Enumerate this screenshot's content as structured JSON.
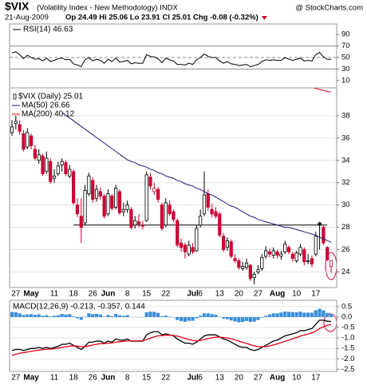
{
  "header": {
    "symbol": "$VIX",
    "description": "(Volatility Index - New Methodology) INDX",
    "source": "@ StockCharts.com",
    "date": "21-Aug-2009",
    "quote": "Op 24.49 Hi 25.06 Lo 23.91 Cl 25.01 Chg -0.08 (-0.32%)"
  },
  "chart_data": [
    {
      "type": "line",
      "ylim": [
        0,
        100
      ],
      "yticks": [
        10,
        30,
        50,
        70,
        90
      ],
      "reference_lines": [
        30,
        50,
        70
      ],
      "series": [
        {
          "name": "RSI(14) 46.63",
          "color": "#000000",
          "values": [
            58,
            60,
            55,
            48,
            54,
            50,
            47,
            48,
            44,
            49,
            43,
            45,
            48,
            49,
            46,
            47,
            39,
            37,
            34,
            46,
            50,
            44,
            47,
            45,
            40,
            47,
            43,
            49,
            42,
            43,
            45,
            39,
            41,
            40,
            40,
            55,
            52,
            51,
            48,
            41,
            49,
            46,
            44,
            38,
            38,
            37,
            40,
            38,
            46,
            50,
            56,
            52,
            50,
            50,
            44,
            40,
            43,
            39,
            38,
            36,
            37,
            38,
            34,
            36,
            38,
            43,
            46,
            45,
            46,
            45,
            45,
            50,
            47,
            45,
            47,
            49,
            44,
            45,
            44,
            55,
            59,
            51,
            46.8,
            46.63
          ]
        }
      ]
    },
    {
      "type": "candlestick",
      "ylim": [
        22.6,
        40.5
      ],
      "yticks": [
        24,
        26,
        28,
        30,
        32,
        34,
        36,
        38
      ],
      "grid": true,
      "reference_lines": [
        28.2
      ],
      "categories": [
        null,
        "27",
        null,
        null,
        null,
        "May",
        null,
        null,
        null,
        null,
        null,
        "11",
        null,
        null,
        null,
        null,
        "18",
        null,
        null,
        null,
        null,
        "26",
        null,
        null,
        null,
        "Jun",
        null,
        null,
        null,
        null,
        "8",
        null,
        null,
        null,
        null,
        "15",
        null,
        null,
        null,
        null,
        "22",
        null,
        null,
        null,
        null,
        null,
        null,
        "Jul",
        null,
        "6",
        null,
        null,
        null,
        null,
        "13",
        null,
        null,
        null,
        null,
        "20",
        null,
        null,
        null,
        null,
        "27",
        null,
        null,
        null,
        null,
        "Aug",
        null,
        null,
        null,
        null,
        "10",
        null,
        null,
        null,
        null,
        "17",
        null,
        null,
        null,
        null
      ],
      "series": [
        {
          "name": "$VIX (Daily) 25.01",
          "up_color": "#000000",
          "down_color": "#cc0033",
          "open": [
            36.5,
            37.3,
            37.2,
            36.4,
            35.2,
            36.2,
            35.0,
            34.0,
            34.4,
            33.0,
            33.9,
            32.4,
            32.8,
            33.6,
            33.8,
            32.6,
            33.0,
            30.0,
            29.0,
            28.4,
            31.0,
            32.2,
            30.6,
            31.2,
            30.8,
            29.2,
            30.8,
            29.8,
            31.2,
            29.4,
            29.6,
            29.6,
            28.2,
            28.5,
            28.2,
            28.6,
            32.5,
            31.2,
            31.4,
            30.0,
            28.2,
            30.0,
            29.4,
            28.6,
            26.6,
            26.4,
            25.6,
            26.2,
            25.9,
            28.2,
            29.2,
            31.0,
            29.6,
            29.4,
            29.2,
            27.2,
            26.2,
            26.7,
            25.2,
            25.0,
            24.3,
            24.4,
            24.6,
            23.5,
            24.0,
            24.3,
            25.4,
            25.8,
            25.5,
            25.8,
            25.4,
            25.8,
            26.2,
            25.6,
            25.0,
            25.6,
            26.0,
            25.0,
            25.2,
            25.6,
            28.4,
            28.0,
            26.2,
            24.49
          ],
          "high": [
            37.6,
            38.0,
            37.6,
            36.7,
            36.9,
            36.4,
            35.4,
            35.0,
            34.6,
            34.8,
            34.2,
            33.2,
            33.9,
            34.2,
            34.0,
            33.6,
            33.2,
            30.6,
            30.6,
            31.8,
            32.9,
            32.5,
            31.8,
            31.6,
            31.0,
            31.4,
            31.0,
            31.8,
            31.4,
            30.2,
            30.4,
            29.8,
            29.0,
            29.2,
            28.6,
            33.0,
            32.9,
            32.0,
            31.6,
            30.2,
            30.6,
            30.4,
            29.6,
            28.8,
            27.0,
            26.6,
            26.8,
            26.6,
            28.2,
            29.6,
            33.0,
            31.4,
            30.1,
            29.8,
            29.4,
            27.5,
            27.1,
            26.9,
            25.6,
            25.2,
            24.9,
            25.2,
            24.7,
            24.0,
            24.6,
            25.6,
            26.3,
            26.1,
            26.2,
            26.0,
            25.9,
            26.8,
            26.4,
            25.8,
            25.9,
            26.5,
            26.2,
            25.6,
            25.5,
            27.6,
            28.5,
            28.2,
            26.3,
            25.06
          ],
          "low": [
            36.2,
            36.8,
            36.3,
            34.8,
            35.0,
            35.0,
            34.0,
            33.7,
            32.6,
            32.8,
            31.9,
            32.0,
            32.6,
            33.0,
            32.6,
            32.4,
            30.0,
            28.9,
            26.6,
            28.2,
            30.8,
            30.2,
            30.3,
            30.5,
            28.8,
            29.0,
            29.5,
            29.6,
            29.1,
            29.0,
            29.3,
            27.8,
            27.9,
            28.0,
            27.8,
            28.5,
            31.4,
            30.9,
            30.2,
            27.7,
            28.0,
            29.0,
            28.5,
            26.2,
            25.8,
            25.2,
            25.4,
            25.6,
            25.8,
            28.0,
            29.0,
            29.5,
            28.9,
            28.8,
            27.1,
            25.8,
            25.9,
            25.2,
            24.8,
            24.2,
            24.1,
            24.2,
            23.2,
            22.9,
            23.8,
            24.1,
            25.2,
            25.3,
            25.2,
            25.2,
            25.1,
            25.6,
            25.6,
            24.9,
            24.8,
            25.4,
            24.6,
            24.7,
            24.4,
            25.4,
            26.0,
            26.4,
            25.0,
            23.91
          ],
          "close": [
            37.0,
            37.5,
            36.6,
            35.0,
            36.5,
            35.3,
            34.2,
            34.5,
            32.8,
            34.2,
            32.1,
            32.6,
            33.5,
            33.9,
            32.8,
            33.2,
            30.2,
            29.2,
            28.0,
            31.3,
            32.6,
            30.5,
            31.4,
            30.8,
            29.0,
            31.0,
            29.7,
            31.5,
            29.3,
            29.6,
            30.0,
            28.0,
            28.6,
            28.3,
            28.1,
            32.7,
            31.7,
            31.5,
            30.5,
            27.9,
            30.2,
            29.2,
            28.7,
            26.4,
            26.2,
            25.8,
            26.4,
            25.8,
            27.9,
            29.0,
            30.9,
            29.8,
            29.2,
            29.0,
            27.3,
            26.0,
            26.8,
            25.4,
            25.0,
            24.4,
            24.5,
            24.8,
            23.4,
            23.8,
            24.2,
            25.3,
            25.9,
            25.6,
            25.9,
            25.5,
            25.6,
            26.5,
            25.8,
            25.2,
            25.7,
            26.2,
            24.9,
            25.0,
            24.7,
            27.2,
            28.2,
            26.6,
            25.09,
            25.01
          ]
        },
        {
          "name": "MA(50) 26.66",
          "color": "#1c1c7c",
          "values": [
            null,
            null,
            null,
            null,
            null,
            null,
            null,
            null,
            null,
            null,
            null,
            null,
            null,
            38.3,
            38.05,
            37.8,
            37.55,
            37.3,
            37.05,
            36.8,
            36.55,
            36.3,
            36.05,
            35.8,
            35.55,
            35.3,
            35.05,
            34.8,
            34.55,
            34.3,
            34.05,
            33.9,
            33.8,
            33.6,
            33.5,
            33.4,
            33.2,
            33.1,
            32.9,
            32.8,
            32.6,
            32.5,
            32.4,
            32.2,
            32.1,
            31.9,
            31.8,
            31.7,
            31.5,
            31.4,
            31.2,
            31.0,
            30.9,
            30.7,
            30.5,
            30.3,
            30.1,
            29.9,
            29.8,
            29.6,
            29.4,
            29.2,
            29.0,
            28.9,
            28.7,
            28.6,
            28.5,
            28.4,
            28.3,
            28.2,
            28.1,
            28.0,
            28.0,
            27.9,
            27.8,
            27.7,
            27.6,
            27.5,
            27.4,
            27.3,
            27.1,
            27.0,
            26.8,
            26.66
          ]
        },
        {
          "name": "MA(200) 40.12",
          "color": "#e0001b",
          "values": [
            null,
            null,
            null,
            null,
            null,
            null,
            null,
            null,
            null,
            null,
            null,
            null,
            null,
            null,
            null,
            null,
            null,
            null,
            null,
            null,
            null,
            null,
            null,
            null,
            null,
            null,
            null,
            null,
            null,
            null,
            null,
            null,
            null,
            null,
            null,
            null,
            null,
            null,
            null,
            null,
            null,
            null,
            null,
            null,
            null,
            null,
            null,
            null,
            null,
            null,
            null,
            null,
            null,
            null,
            null,
            null,
            null,
            null,
            null,
            null,
            null,
            null,
            null,
            null,
            null,
            null,
            null,
            null,
            null,
            null,
            null,
            null,
            null,
            null,
            null,
            null,
            null,
            null,
            40.55,
            40.45,
            40.35,
            40.27,
            40.19,
            40.12
          ]
        }
      ]
    },
    {
      "type": "macd",
      "title": "MACD(12,26,9)",
      "ylim": [
        -2.6,
        0.8
      ],
      "grid": true,
      "yticks": [
        0.5,
        {
          "value": 0,
          "label": "0.0"
        },
        -0.5,
        {
          "value": -1,
          "label": "-1.0"
        },
        -1.5,
        {
          "value": -2,
          "label": "-2.0"
        },
        -2.5
      ],
      "categories": [
        null,
        "27",
        null,
        null,
        null,
        "May",
        null,
        null,
        null,
        null,
        null,
        "11",
        null,
        null,
        null,
        null,
        "18",
        null,
        null,
        null,
        null,
        "26",
        null,
        null,
        null,
        "Jun",
        null,
        null,
        null,
        null,
        "8",
        null,
        null,
        null,
        null,
        "15",
        null,
        null,
        null,
        null,
        "22",
        null,
        null,
        null,
        null,
        null,
        null,
        "Jul",
        null,
        "6",
        null,
        null,
        null,
        null,
        "13",
        null,
        null,
        null,
        null,
        "20",
        null,
        null,
        null,
        null,
        "27",
        null,
        null,
        null,
        null,
        "Aug",
        null,
        null,
        null,
        null,
        "10",
        null,
        null,
        null,
        null,
        "17",
        null,
        null,
        null,
        null
      ],
      "series": [
        {
          "name": "-0.213,",
          "color": "#000000",
          "values": [
            -1.6,
            -1.55,
            -1.55,
            -1.6,
            -1.55,
            -1.5,
            -1.5,
            -1.45,
            -1.5,
            -1.45,
            -1.5,
            -1.45,
            -1.4,
            -1.3,
            -1.3,
            -1.25,
            -1.35,
            -1.45,
            -1.55,
            -1.4,
            -1.2,
            -1.2,
            -1.15,
            -1.15,
            -1.25,
            -1.15,
            -1.2,
            -1.05,
            -1.1,
            -1.1,
            -1.05,
            -1.15,
            -1.15,
            -1.15,
            -1.15,
            -0.85,
            -0.75,
            -0.7,
            -0.7,
            -0.85,
            -0.8,
            -0.85,
            -0.9,
            -1.05,
            -1.15,
            -1.25,
            -1.25,
            -1.3,
            -1.2,
            -1.05,
            -0.9,
            -0.85,
            -0.85,
            -0.85,
            -0.95,
            -1.05,
            -1.1,
            -1.2,
            -1.3,
            -1.4,
            -1.45,
            -1.45,
            -1.55,
            -1.6,
            -1.55,
            -1.45,
            -1.35,
            -1.25,
            -1.15,
            -1.1,
            -1.0,
            -0.9,
            -0.85,
            -0.8,
            -0.75,
            -0.65,
            -0.65,
            -0.6,
            -0.55,
            -0.35,
            -0.15,
            -0.15,
            -0.2,
            -0.213
          ]
        },
        {
          "name": "-0.357,",
          "color": "#e0001b",
          "values": [
            -1.84,
            -1.78,
            -1.73,
            -1.7,
            -1.67,
            -1.64,
            -1.61,
            -1.58,
            -1.56,
            -1.54,
            -1.53,
            -1.51,
            -1.49,
            -1.45,
            -1.42,
            -1.39,
            -1.38,
            -1.39,
            -1.42,
            -1.42,
            -1.38,
            -1.34,
            -1.3,
            -1.27,
            -1.27,
            -1.25,
            -1.24,
            -1.2,
            -1.18,
            -1.16,
            -1.14,
            -1.14,
            -1.14,
            -1.14,
            -1.14,
            -1.08,
            -1.01,
            -0.95,
            -0.9,
            -0.89,
            -0.87,
            -0.87,
            -0.88,
            -0.91,
            -0.96,
            -1.02,
            -1.07,
            -1.12,
            -1.14,
            -1.12,
            -1.08,
            -1.03,
            -0.99,
            -0.96,
            -0.96,
            -0.98,
            -1.0,
            -1.04,
            -1.09,
            -1.15,
            -1.21,
            -1.26,
            -1.32,
            -1.38,
            -1.41,
            -1.42,
            -1.41,
            -1.38,
            -1.33,
            -1.28,
            -1.22,
            -1.16,
            -1.1,
            -1.04,
            -0.98,
            -0.91,
            -0.86,
            -0.81,
            -0.76,
            -0.68,
            -0.55,
            -0.47,
            -0.4,
            -0.357
          ]
        },
        {
          "name": "0.144",
          "color": "#3a8fd9",
          "kind": "bar",
          "values": [
            0.24,
            0.23,
            0.18,
            0.1,
            0.12,
            0.14,
            0.11,
            0.13,
            0.06,
            0.09,
            0.03,
            0.06,
            0.09,
            0.15,
            0.12,
            0.14,
            0.03,
            -0.06,
            -0.13,
            0.02,
            0.18,
            0.14,
            0.15,
            0.12,
            0.02,
            0.1,
            0.04,
            0.15,
            0.08,
            0.06,
            0.09,
            -0.01,
            -0.01,
            -0.01,
            -0.01,
            0.23,
            0.26,
            0.25,
            0.2,
            0.04,
            0.07,
            0.02,
            -0.02,
            -0.14,
            -0.19,
            -0.23,
            -0.18,
            -0.18,
            -0.06,
            0.07,
            0.18,
            0.18,
            0.14,
            0.11,
            0.01,
            -0.07,
            -0.1,
            -0.16,
            -0.21,
            -0.25,
            -0.24,
            -0.19,
            -0.23,
            -0.22,
            -0.14,
            -0.03,
            0.06,
            0.13,
            0.18,
            0.18,
            0.22,
            0.26,
            0.25,
            0.24,
            0.23,
            0.26,
            0.21,
            0.21,
            0.21,
            0.33,
            0.4,
            0.32,
            0.2,
            0.144
          ]
        }
      ]
    }
  ]
}
